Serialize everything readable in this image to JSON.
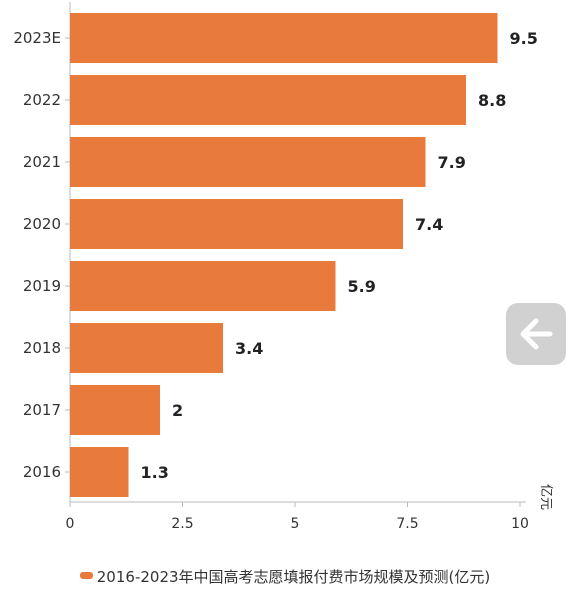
{
  "colors": {
    "bar": "#E87A3B",
    "axis": "#bbbbbb",
    "grid": "#e3e3e3"
  },
  "unit_label": "亿元",
  "legend": {
    "label": "2016-2023年中国高考志愿填报付费市场规模及预测(亿元)"
  },
  "nav": {
    "back_icon": "arrow-left-icon"
  },
  "chart_data": {
    "type": "bar",
    "orientation": "horizontal",
    "categories": [
      "2023E",
      "2022",
      "2021",
      "2020",
      "2019",
      "2018",
      "2017",
      "2016"
    ],
    "values": [
      9.5,
      8.8,
      7.9,
      7.4,
      5.9,
      3.4,
      2,
      1.3
    ],
    "value_labels": [
      "9.5",
      "8.8",
      "7.9",
      "7.4",
      "5.9",
      "3.4",
      "2",
      "1.3"
    ],
    "xticks": [
      0,
      2.5,
      5,
      7.5,
      10
    ],
    "xtick_labels": [
      "0",
      "2.5",
      "5",
      "7.5",
      "10"
    ],
    "xlim": [
      0,
      10
    ],
    "grid": false,
    "legend_position": "bottom",
    "series": [
      {
        "name": "2016-2023年中国高考志愿填报付费市场规模及预测(亿元)"
      }
    ]
  }
}
